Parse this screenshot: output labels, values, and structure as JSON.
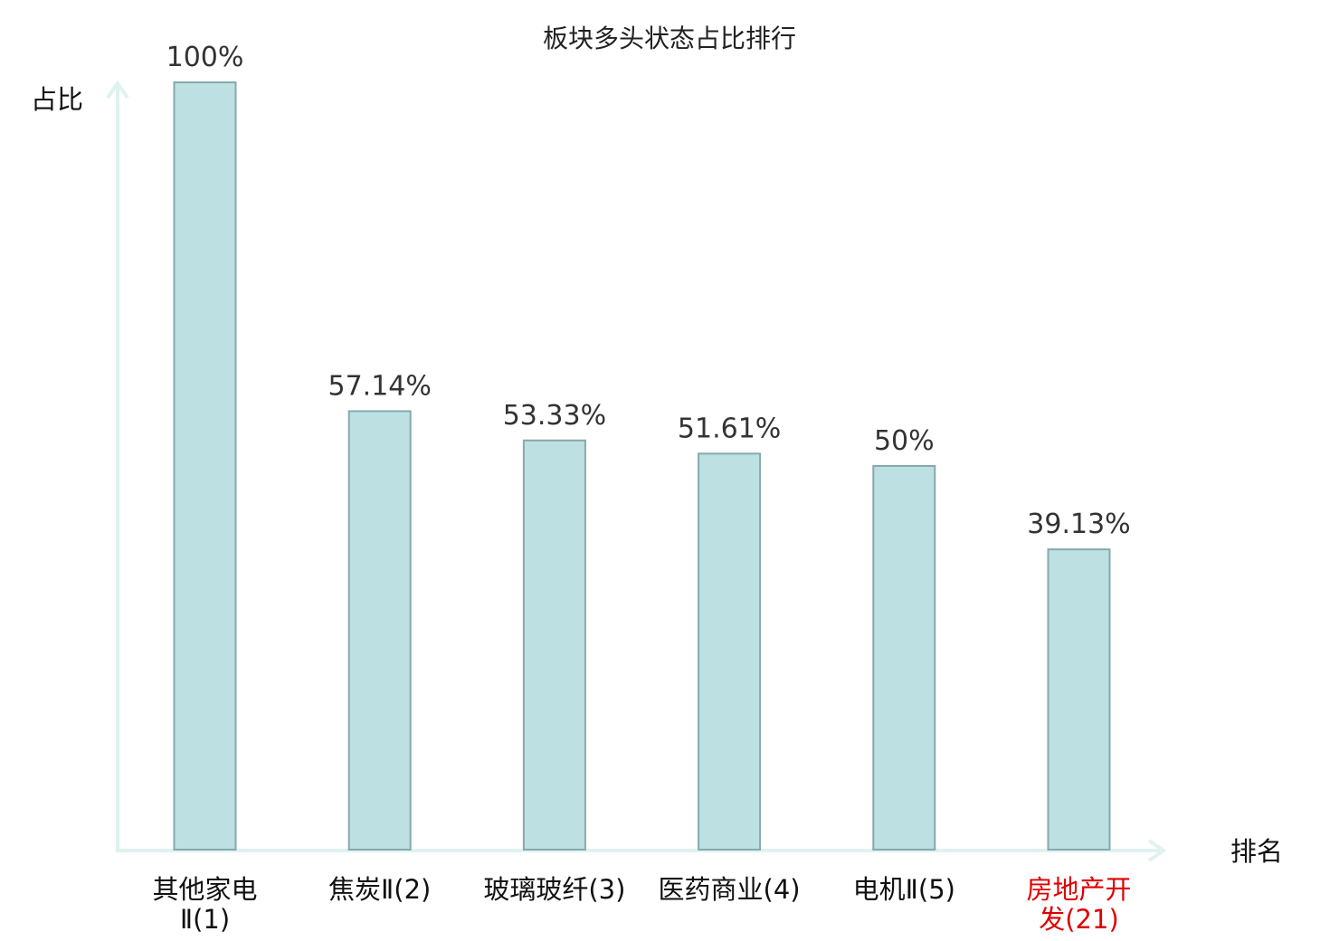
{
  "chart_data": {
    "type": "bar",
    "title": "板块多头状态占比排行",
    "ylabel": "占比",
    "xlabel": "排名",
    "ylim": [
      0,
      100
    ],
    "grid": false,
    "legend": "none",
    "categories": [
      {
        "name_lines": [
          "其他家电",
          "Ⅱ(1)"
        ],
        "highlight": false
      },
      {
        "name_lines": [
          "焦炭Ⅱ(2)"
        ],
        "highlight": false
      },
      {
        "name_lines": [
          "玻璃玻纤(3)"
        ],
        "highlight": false
      },
      {
        "name_lines": [
          "医药商业(4)"
        ],
        "highlight": false
      },
      {
        "name_lines": [
          "电机Ⅱ(5)"
        ],
        "highlight": false
      },
      {
        "name_lines": [
          "房地产开",
          "发(21)"
        ],
        "highlight": true
      }
    ],
    "values": [
      100,
      57.14,
      53.33,
      51.61,
      50,
      39.13
    ],
    "value_labels": [
      "100%",
      "57.14%",
      "53.33%",
      "51.61%",
      "50%",
      "39.13%"
    ],
    "colors": {
      "bar_fill": "#bde0e2",
      "bar_stroke": "#86a9ad",
      "axis": "#dff2ef",
      "highlight_text": "#e00000"
    }
  }
}
